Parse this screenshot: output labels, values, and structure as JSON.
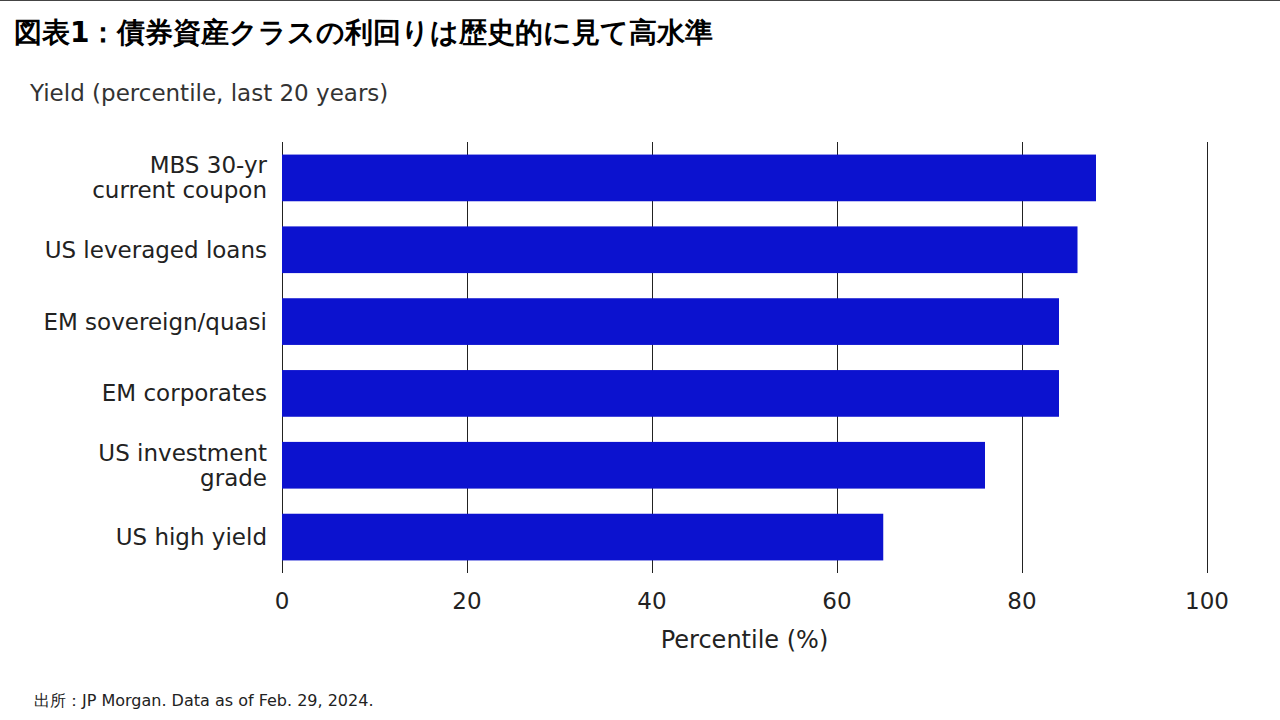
{
  "chart_data": {
    "type": "bar",
    "title": "図表1：債券資産クラスの利回りは歴史的に見て高水準",
    "subtitle": "Yield (percentile, last 20 years)",
    "xlabel": "Percentile (%)",
    "source": "出所：JP Morgan. Data as of Feb. 29, 2024.",
    "categories": [
      "MBS 30-yr\ncurrent coupon",
      "US leveraged loans",
      "EM sovereign/quasi",
      "EM corporates",
      "US investment\ngrade",
      "US high yield"
    ],
    "values": [
      88,
      86,
      84,
      84,
      76,
      65
    ],
    "color": "#0c12cf",
    "orientation": "horizontal",
    "xlim": [
      0,
      100
    ],
    "xticks": [
      0,
      20,
      40,
      60,
      80,
      100
    ],
    "grid": true
  }
}
